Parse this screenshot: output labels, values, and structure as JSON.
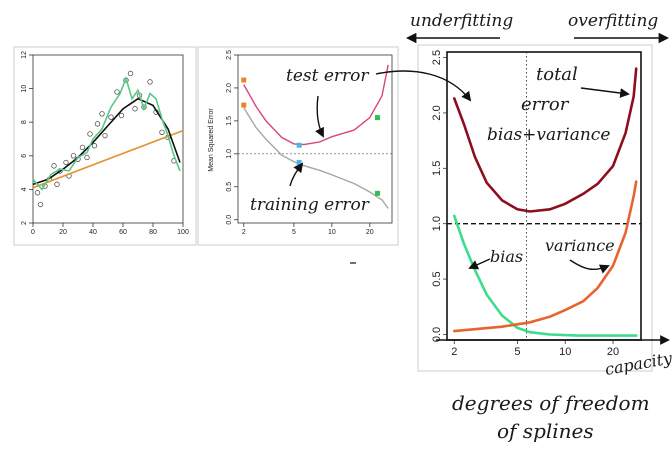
{
  "annotations": {
    "underfitting": "underfitting",
    "overfitting": "overfitting",
    "test_error": "test error",
    "training_error": "training error",
    "total_error_1": "total",
    "total_error_2": "error",
    "bias_variance": "bias+variance",
    "bias": "bias",
    "variance": "variance",
    "capacity": "capacity",
    "dof_1": "degrees of freedom",
    "dof_2": "of splines"
  },
  "chart_data": [
    {
      "type": "scatter",
      "xlim": [
        0,
        100
      ],
      "ylim": [
        2,
        12
      ],
      "x_ticks": [
        "0",
        "20",
        "40",
        "60",
        "80",
        "100"
      ],
      "y_ticks": [
        "2",
        "4",
        "6",
        "8",
        "10",
        "12"
      ],
      "points": [
        [
          3,
          3.8
        ],
        [
          5,
          3.1
        ],
        [
          8,
          4.2
        ],
        [
          11,
          4.6
        ],
        [
          14,
          5.4
        ],
        [
          16,
          4.3
        ],
        [
          18,
          5.1
        ],
        [
          22,
          5.6
        ],
        [
          24,
          4.8
        ],
        [
          27,
          6.0
        ],
        [
          30,
          5.8
        ],
        [
          33,
          6.5
        ],
        [
          36,
          5.9
        ],
        [
          38,
          7.3
        ],
        [
          41,
          6.6
        ],
        [
          43,
          7.9
        ],
        [
          46,
          8.5
        ],
        [
          48,
          7.2
        ],
        [
          52,
          8.3
        ],
        [
          56,
          9.8
        ],
        [
          59,
          8.4
        ],
        [
          62,
          10.5
        ],
        [
          65,
          10.9
        ],
        [
          68,
          8.8
        ],
        [
          71,
          9.6
        ],
        [
          74,
          8.9
        ],
        [
          78,
          10.4
        ],
        [
          82,
          8.6
        ],
        [
          86,
          7.4
        ],
        [
          90,
          7.1
        ],
        [
          94,
          5.7
        ]
      ],
      "series": [
        {
          "color": "#e8902f",
          "values": [
            [
              0,
              4.1
            ],
            [
              100,
              7.5
            ]
          ]
        },
        {
          "color": "#101010",
          "values": [
            [
              0,
              4.3
            ],
            [
              10,
              4.6
            ],
            [
              20,
              5.2
            ],
            [
              30,
              5.9
            ],
            [
              40,
              6.8
            ],
            [
              50,
              7.8
            ],
            [
              60,
              8.8
            ],
            [
              70,
              9.4
            ],
            [
              80,
              9.0
            ],
            [
              90,
              7.6
            ],
            [
              98,
              5.6
            ]
          ]
        },
        {
          "color": "#57c985",
          "values": [
            [
              0,
              4.6
            ],
            [
              6,
              4.0
            ],
            [
              12,
              4.9
            ],
            [
              18,
              5.2
            ],
            [
              24,
              5.1
            ],
            [
              30,
              5.9
            ],
            [
              36,
              6.2
            ],
            [
              40,
              7.0
            ],
            [
              46,
              7.6
            ],
            [
              52,
              8.9
            ],
            [
              58,
              9.7
            ],
            [
              62,
              10.6
            ],
            [
              66,
              9.4
            ],
            [
              70,
              9.9
            ],
            [
              74,
              8.8
            ],
            [
              78,
              9.7
            ],
            [
              82,
              9.4
            ],
            [
              86,
              8.2
            ],
            [
              90,
              7.2
            ],
            [
              94,
              6.0
            ],
            [
              98,
              5.1
            ]
          ]
        }
      ]
    },
    {
      "type": "line",
      "ylabel": "Mean Squared Error",
      "xscale": "log",
      "xlim": [
        1.8,
        30
      ],
      "ylim": [
        -0.05,
        2.5
      ],
      "x_ticks": [
        "2",
        "5",
        "10",
        "20"
      ],
      "y_ticks": [
        "0.0",
        "0.5",
        "1.0",
        "1.5",
        "2.0",
        "2.5"
      ],
      "reference_line": 1.0,
      "series": [
        {
          "color": "#d8467a",
          "values": [
            [
              2,
              2.05
            ],
            [
              2.5,
              1.72
            ],
            [
              3,
              1.5
            ],
            [
              4,
              1.25
            ],
            [
              5,
              1.15
            ],
            [
              6,
              1.14
            ],
            [
              8,
              1.18
            ],
            [
              10,
              1.26
            ],
            [
              15,
              1.36
            ],
            [
              20,
              1.55
            ],
            [
              25,
              1.88
            ],
            [
              28,
              2.35
            ]
          ]
        },
        {
          "color": "#a6a6a6",
          "values": [
            [
              2,
              1.7
            ],
            [
              2.5,
              1.4
            ],
            [
              3,
              1.22
            ],
            [
              4,
              0.98
            ],
            [
              5,
              0.88
            ],
            [
              6,
              0.82
            ],
            [
              8,
              0.75
            ],
            [
              10,
              0.68
            ],
            [
              15,
              0.55
            ],
            [
              20,
              0.42
            ],
            [
              25,
              0.3
            ],
            [
              28,
              0.17
            ]
          ]
        }
      ],
      "markers": [
        {
          "x": 2,
          "y": 2.12,
          "color": "#e8832c"
        },
        {
          "x": 2,
          "y": 1.74,
          "color": "#e8832c"
        },
        {
          "x": 5.5,
          "y": 1.13,
          "color": "#4bb9e6"
        },
        {
          "x": 5.5,
          "y": 0.87,
          "color": "#4bb9e6"
        },
        {
          "x": 23,
          "y": 1.55,
          "color": "#2fbf4a"
        },
        {
          "x": 23,
          "y": 0.4,
          "color": "#2fbf4a"
        }
      ]
    },
    {
      "type": "line",
      "xscale": "log",
      "xlim": [
        1.8,
        30
      ],
      "ylim": [
        -0.05,
        2.55
      ],
      "x_ticks": [
        "2",
        "5",
        "10",
        "20"
      ],
      "y_ticks": [
        "0.0",
        "0.5",
        "1.0",
        "1.5",
        "2.0",
        "2.5"
      ],
      "reference_line": 1.0,
      "vertical_reference": 5.7,
      "series": [
        {
          "color": "#8d0f1f",
          "values": [
            [
              2,
              2.13
            ],
            [
              2.3,
              1.9
            ],
            [
              2.7,
              1.6
            ],
            [
              3.2,
              1.37
            ],
            [
              4,
              1.21
            ],
            [
              5,
              1.13
            ],
            [
              6,
              1.11
            ],
            [
              8,
              1.13
            ],
            [
              10,
              1.18
            ],
            [
              13,
              1.27
            ],
            [
              16,
              1.36
            ],
            [
              20,
              1.52
            ],
            [
              24,
              1.82
            ],
            [
              27,
              2.15
            ],
            [
              28,
              2.4
            ]
          ]
        },
        {
          "color": "#3ddc8c",
          "values": [
            [
              2,
              1.07
            ],
            [
              2.3,
              0.82
            ],
            [
              2.7,
              0.58
            ],
            [
              3.2,
              0.36
            ],
            [
              4,
              0.17
            ],
            [
              5,
              0.06
            ],
            [
              6,
              0.02
            ],
            [
              8,
              0.0
            ],
            [
              12,
              -0.01
            ],
            [
              20,
              -0.01
            ],
            [
              28,
              -0.01
            ]
          ]
        },
        {
          "color": "#e8632f",
          "values": [
            [
              2,
              0.03
            ],
            [
              4,
              0.07
            ],
            [
              6,
              0.11
            ],
            [
              8,
              0.16
            ],
            [
              10,
              0.22
            ],
            [
              13,
              0.3
            ],
            [
              16,
              0.42
            ],
            [
              20,
              0.62
            ],
            [
              24,
              0.92
            ],
            [
              27,
              1.25
            ],
            [
              28,
              1.38
            ]
          ]
        }
      ]
    }
  ]
}
